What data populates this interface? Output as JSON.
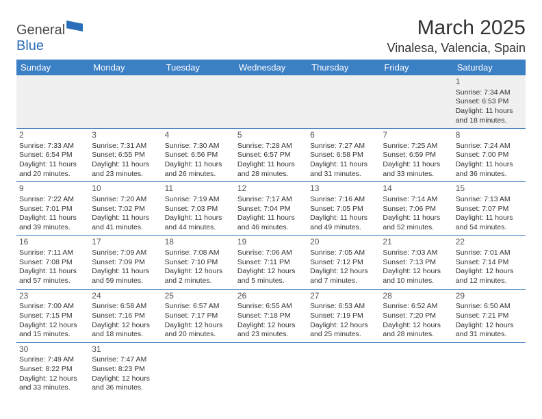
{
  "logo": {
    "text1": "General",
    "text2": "Blue"
  },
  "title": "March 2025",
  "location": "Vinalesa, Valencia, Spain",
  "colors": {
    "header_bg": "#3b7fc4",
    "header_fg": "#ffffff",
    "rule": "#2a6db8",
    "empty_bg": "#f0f0f0",
    "logo_blue": "#2a6db8"
  },
  "weekdays": [
    "Sunday",
    "Monday",
    "Tuesday",
    "Wednesday",
    "Thursday",
    "Friday",
    "Saturday"
  ],
  "weeks": [
    [
      null,
      null,
      null,
      null,
      null,
      null,
      {
        "n": "1",
        "sr": "7:34 AM",
        "ss": "6:53 PM",
        "d1": "11 hours",
        "d2": "and 18 minutes."
      }
    ],
    [
      {
        "n": "2",
        "sr": "7:33 AM",
        "ss": "6:54 PM",
        "d1": "11 hours",
        "d2": "and 20 minutes."
      },
      {
        "n": "3",
        "sr": "7:31 AM",
        "ss": "6:55 PM",
        "d1": "11 hours",
        "d2": "and 23 minutes."
      },
      {
        "n": "4",
        "sr": "7:30 AM",
        "ss": "6:56 PM",
        "d1": "11 hours",
        "d2": "and 26 minutes."
      },
      {
        "n": "5",
        "sr": "7:28 AM",
        "ss": "6:57 PM",
        "d1": "11 hours",
        "d2": "and 28 minutes."
      },
      {
        "n": "6",
        "sr": "7:27 AM",
        "ss": "6:58 PM",
        "d1": "11 hours",
        "d2": "and 31 minutes."
      },
      {
        "n": "7",
        "sr": "7:25 AM",
        "ss": "6:59 PM",
        "d1": "11 hours",
        "d2": "and 33 minutes."
      },
      {
        "n": "8",
        "sr": "7:24 AM",
        "ss": "7:00 PM",
        "d1": "11 hours",
        "d2": "and 36 minutes."
      }
    ],
    [
      {
        "n": "9",
        "sr": "7:22 AM",
        "ss": "7:01 PM",
        "d1": "11 hours",
        "d2": "and 39 minutes."
      },
      {
        "n": "10",
        "sr": "7:20 AM",
        "ss": "7:02 PM",
        "d1": "11 hours",
        "d2": "and 41 minutes."
      },
      {
        "n": "11",
        "sr": "7:19 AM",
        "ss": "7:03 PM",
        "d1": "11 hours",
        "d2": "and 44 minutes."
      },
      {
        "n": "12",
        "sr": "7:17 AM",
        "ss": "7:04 PM",
        "d1": "11 hours",
        "d2": "and 46 minutes."
      },
      {
        "n": "13",
        "sr": "7:16 AM",
        "ss": "7:05 PM",
        "d1": "11 hours",
        "d2": "and 49 minutes."
      },
      {
        "n": "14",
        "sr": "7:14 AM",
        "ss": "7:06 PM",
        "d1": "11 hours",
        "d2": "and 52 minutes."
      },
      {
        "n": "15",
        "sr": "7:13 AM",
        "ss": "7:07 PM",
        "d1": "11 hours",
        "d2": "and 54 minutes."
      }
    ],
    [
      {
        "n": "16",
        "sr": "7:11 AM",
        "ss": "7:08 PM",
        "d1": "11 hours",
        "d2": "and 57 minutes."
      },
      {
        "n": "17",
        "sr": "7:09 AM",
        "ss": "7:09 PM",
        "d1": "11 hours",
        "d2": "and 59 minutes."
      },
      {
        "n": "18",
        "sr": "7:08 AM",
        "ss": "7:10 PM",
        "d1": "12 hours",
        "d2": "and 2 minutes."
      },
      {
        "n": "19",
        "sr": "7:06 AM",
        "ss": "7:11 PM",
        "d1": "12 hours",
        "d2": "and 5 minutes."
      },
      {
        "n": "20",
        "sr": "7:05 AM",
        "ss": "7:12 PM",
        "d1": "12 hours",
        "d2": "and 7 minutes."
      },
      {
        "n": "21",
        "sr": "7:03 AM",
        "ss": "7:13 PM",
        "d1": "12 hours",
        "d2": "and 10 minutes."
      },
      {
        "n": "22",
        "sr": "7:01 AM",
        "ss": "7:14 PM",
        "d1": "12 hours",
        "d2": "and 12 minutes."
      }
    ],
    [
      {
        "n": "23",
        "sr": "7:00 AM",
        "ss": "7:15 PM",
        "d1": "12 hours",
        "d2": "and 15 minutes."
      },
      {
        "n": "24",
        "sr": "6:58 AM",
        "ss": "7:16 PM",
        "d1": "12 hours",
        "d2": "and 18 minutes."
      },
      {
        "n": "25",
        "sr": "6:57 AM",
        "ss": "7:17 PM",
        "d1": "12 hours",
        "d2": "and 20 minutes."
      },
      {
        "n": "26",
        "sr": "6:55 AM",
        "ss": "7:18 PM",
        "d1": "12 hours",
        "d2": "and 23 minutes."
      },
      {
        "n": "27",
        "sr": "6:53 AM",
        "ss": "7:19 PM",
        "d1": "12 hours",
        "d2": "and 25 minutes."
      },
      {
        "n": "28",
        "sr": "6:52 AM",
        "ss": "7:20 PM",
        "d1": "12 hours",
        "d2": "and 28 minutes."
      },
      {
        "n": "29",
        "sr": "6:50 AM",
        "ss": "7:21 PM",
        "d1": "12 hours",
        "d2": "and 31 minutes."
      }
    ],
    [
      {
        "n": "30",
        "sr": "7:49 AM",
        "ss": "8:22 PM",
        "d1": "12 hours",
        "d2": "and 33 minutes."
      },
      {
        "n": "31",
        "sr": "7:47 AM",
        "ss": "8:23 PM",
        "d1": "12 hours",
        "d2": "and 36 minutes."
      },
      null,
      null,
      null,
      null,
      null
    ]
  ],
  "labels": {
    "sunrise": "Sunrise: ",
    "sunset": "Sunset: ",
    "daylight": "Daylight: "
  }
}
